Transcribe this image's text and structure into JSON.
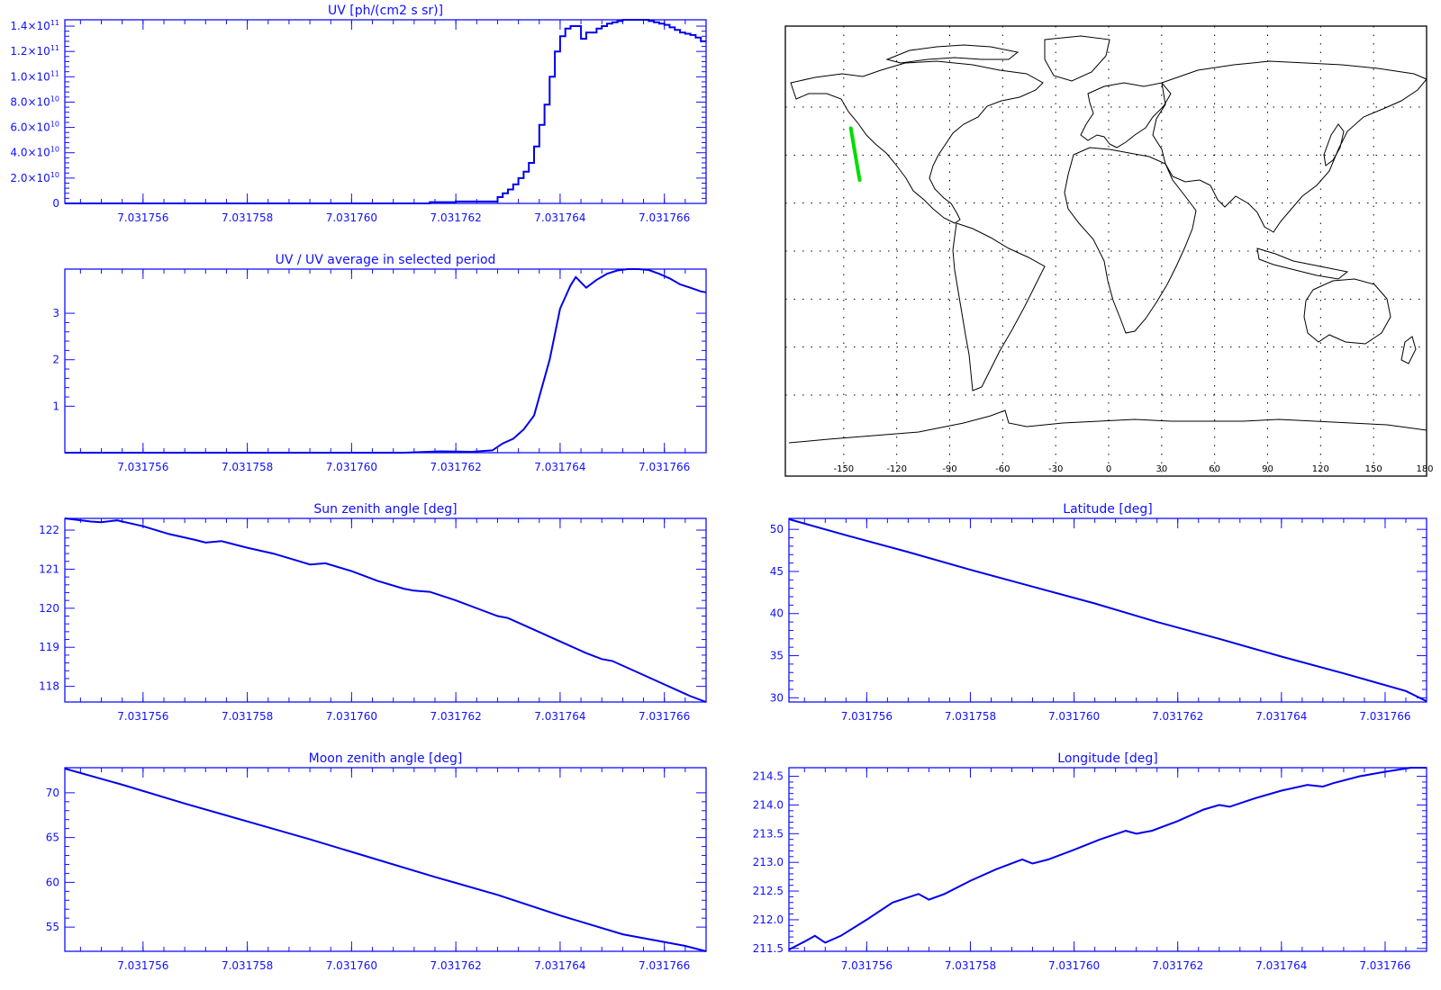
{
  "colors": {
    "axis": "#1010ff",
    "line": "#0000ee",
    "map_outline": "#000000",
    "track": "#00dd00",
    "grid": "#000000"
  },
  "x_ticks": [
    "7.031756",
    "7.031758",
    "7.031760",
    "7.031762",
    "7.031764",
    "7.031766"
  ],
  "chart_data": [
    {
      "type": "line",
      "step": true,
      "title": "UV [ph/(cm2 s sr)]",
      "xlim": [
        7.0317545,
        7.0317668
      ],
      "ylim": [
        0,
        145000000000.0
      ],
      "y_ticks": [
        {
          "v": 0,
          "label": "0"
        },
        {
          "v": 20000000000.0,
          "label": "2.0×10",
          "exp": "10"
        },
        {
          "v": 40000000000.0,
          "label": "4.0×10",
          "exp": "10"
        },
        {
          "v": 60000000000.0,
          "label": "6.0×10",
          "exp": "10"
        },
        {
          "v": 80000000000.0,
          "label": "8.0×10",
          "exp": "10"
        },
        {
          "v": 100000000000.0,
          "label": "1.0×10",
          "exp": "11"
        },
        {
          "v": 120000000000.0,
          "label": "1.2×10",
          "exp": "11"
        },
        {
          "v": 140000000000.0,
          "label": "1.4×10",
          "exp": "11"
        }
      ],
      "x": [
        7.0317545,
        7.031761,
        7.0317615,
        7.031762,
        7.0317626,
        7.0317628,
        7.0317629,
        7.031763,
        7.0317631,
        7.0317632,
        7.0317633,
        7.0317634,
        7.0317635,
        7.0317636,
        7.0317637,
        7.0317638,
        7.0317639,
        7.031764,
        7.0317641,
        7.0317642,
        7.0317643,
        7.0317644,
        7.0317645,
        7.0317647,
        7.0317648,
        7.0317649,
        7.031765,
        7.0317651,
        7.0317652,
        7.0317653,
        7.0317654,
        7.0317655,
        7.0317657,
        7.0317658,
        7.0317659,
        7.031766,
        7.0317661,
        7.0317662,
        7.0317663,
        7.0317664,
        7.0317665,
        7.0317666,
        7.0317667,
        7.0317668
      ],
      "y": [
        0,
        0,
        1000000000.0,
        1500000000.0,
        1500000000.0,
        5000000000.0,
        8000000000.0,
        11000000000.0,
        15000000000.0,
        20000000000.0,
        25000000000.0,
        32000000000.0,
        45000000000.0,
        62000000000.0,
        78000000000.0,
        100000000000.0,
        120000000000.0,
        132000000000.0,
        138000000000.0,
        140000000000.0,
        140000000000.0,
        130000000000.0,
        135000000000.0,
        138000000000.0,
        140000000000.0,
        142000000000.0,
        143000000000.0,
        144000000000.0,
        145000000000.0,
        145000000000.0,
        145000000000.0,
        145000000000.0,
        144000000000.0,
        143000000000.0,
        142000000000.0,
        141000000000.0,
        139000000000.0,
        137000000000.0,
        135000000000.0,
        134000000000.0,
        133000000000.0,
        131000000000.0,
        128000000000.0,
        128000000000.0
      ]
    },
    {
      "type": "line",
      "title": "UV / UV average in selected period",
      "xlim": [
        7.0317545,
        7.0317668
      ],
      "ylim": [
        0,
        3.95
      ],
      "y_ticks": [
        {
          "v": 1,
          "label": "1"
        },
        {
          "v": 2,
          "label": "2"
        },
        {
          "v": 3,
          "label": "3"
        }
      ],
      "x": [
        7.0317545,
        7.031761,
        7.0317617,
        7.0317623,
        7.0317627,
        7.0317629,
        7.0317631,
        7.0317633,
        7.0317635,
        7.0317638,
        7.031764,
        7.0317642,
        7.0317643,
        7.0317645,
        7.0317647,
        7.0317649,
        7.0317651,
        7.0317653,
        7.0317655,
        7.0317657,
        7.0317659,
        7.0317661,
        7.0317663,
        7.0317665,
        7.0317667,
        7.0317668
      ],
      "y": [
        0,
        0,
        0.03,
        0.02,
        0.05,
        0.2,
        0.3,
        0.5,
        0.8,
        2.0,
        3.1,
        3.6,
        3.78,
        3.55,
        3.72,
        3.85,
        3.92,
        3.95,
        3.95,
        3.93,
        3.85,
        3.75,
        3.62,
        3.55,
        3.47,
        3.45
      ]
    },
    {
      "type": "line",
      "title": "Sun zenith angle [deg]",
      "xlim": [
        7.0317545,
        7.0317668
      ],
      "ylim": [
        117.6,
        122.3
      ],
      "y_ticks": [
        {
          "v": 118,
          "label": "118"
        },
        {
          "v": 119,
          "label": "119"
        },
        {
          "v": 120,
          "label": "120"
        },
        {
          "v": 121,
          "label": "121"
        },
        {
          "v": 122,
          "label": "122"
        }
      ],
      "x": [
        7.0317545,
        7.031755,
        7.0317552,
        7.0317555,
        7.031756,
        7.0317565,
        7.031757,
        7.0317572,
        7.0317575,
        7.031758,
        7.0317585,
        7.031759,
        7.0317592,
        7.0317595,
        7.03176,
        7.0317605,
        7.031761,
        7.0317612,
        7.0317615,
        7.031762,
        7.0317625,
        7.0317628,
        7.031763,
        7.0317635,
        7.031764,
        7.0317645,
        7.0317648,
        7.031765,
        7.0317655,
        7.031766,
        7.0317665,
        7.0317668
      ],
      "y": [
        122.3,
        122.22,
        122.2,
        122.25,
        122.1,
        121.9,
        121.75,
        121.68,
        121.72,
        121.55,
        121.4,
        121.2,
        121.12,
        121.15,
        120.95,
        120.7,
        120.5,
        120.45,
        120.42,
        120.2,
        119.95,
        119.8,
        119.75,
        119.45,
        119.15,
        118.85,
        118.7,
        118.65,
        118.35,
        118.05,
        117.75,
        117.6
      ]
    },
    {
      "type": "line",
      "title": "Moon zenith angle [deg]",
      "xlim": [
        7.0317545,
        7.0317668
      ],
      "ylim": [
        52.3,
        72.8
      ],
      "y_ticks": [
        {
          "v": 55,
          "label": "55"
        },
        {
          "v": 60,
          "label": "60"
        },
        {
          "v": 65,
          "label": "65"
        },
        {
          "v": 70,
          "label": "70"
        }
      ],
      "x": [
        7.0317545,
        7.0317556,
        7.0317568,
        7.031758,
        7.0317592,
        7.0317604,
        7.0317616,
        7.0317628,
        7.031764,
        7.0317652,
        7.0317664,
        7.0317668
      ],
      "y": [
        72.7,
        70.9,
        68.8,
        66.8,
        64.8,
        62.7,
        60.6,
        58.6,
        56.3,
        54.2,
        52.9,
        52.3
      ]
    },
    {
      "type": "line",
      "title": "Latitude [deg]",
      "xlim": [
        7.0317545,
        7.0317668
      ],
      "ylim": [
        29.5,
        51.3
      ],
      "y_ticks": [
        {
          "v": 30,
          "label": "30"
        },
        {
          "v": 35,
          "label": "35"
        },
        {
          "v": 40,
          "label": "40"
        },
        {
          "v": 45,
          "label": "45"
        },
        {
          "v": 50,
          "label": "50"
        }
      ],
      "x": [
        7.0317545,
        7.0317556,
        7.0317568,
        7.031758,
        7.0317592,
        7.0317604,
        7.0317616,
        7.0317628,
        7.031764,
        7.0317652,
        7.0317664,
        7.0317668
      ],
      "y": [
        51.2,
        49.3,
        47.3,
        45.2,
        43.2,
        41.2,
        39.0,
        37.0,
        34.9,
        32.9,
        30.8,
        29.6
      ]
    },
    {
      "type": "line",
      "title": "Longitude [deg]",
      "xlim": [
        7.0317545,
        7.0317668
      ],
      "ylim": [
        211.45,
        214.65
      ],
      "y_ticks": [
        {
          "v": 211.5,
          "label": "211.5"
        },
        {
          "v": 212.0,
          "label": "212.0"
        },
        {
          "v": 212.5,
          "label": "212.5"
        },
        {
          "v": 213.0,
          "label": "213.0"
        },
        {
          "v": 213.5,
          "label": "213.5"
        },
        {
          "v": 214.0,
          "label": "214.0"
        },
        {
          "v": 214.5,
          "label": "214.5"
        }
      ],
      "x": [
        7.0317545,
        7.0317548,
        7.031755,
        7.0317552,
        7.0317555,
        7.031756,
        7.0317565,
        7.031757,
        7.0317572,
        7.0317575,
        7.031758,
        7.0317585,
        7.031759,
        7.0317592,
        7.0317595,
        7.03176,
        7.0317605,
        7.031761,
        7.0317612,
        7.0317615,
        7.031762,
        7.0317625,
        7.0317628,
        7.031763,
        7.0317635,
        7.031764,
        7.0317645,
        7.0317648,
        7.031765,
        7.0317655,
        7.031766,
        7.0317665,
        7.0317668
      ],
      "y": [
        211.48,
        211.62,
        211.72,
        211.6,
        211.72,
        212.0,
        212.3,
        212.45,
        212.35,
        212.45,
        212.68,
        212.88,
        213.05,
        212.98,
        213.05,
        213.22,
        213.4,
        213.55,
        213.5,
        213.55,
        213.72,
        213.92,
        214.0,
        213.97,
        214.12,
        214.25,
        214.35,
        214.32,
        214.38,
        214.5,
        214.58,
        214.65,
        214.65
      ]
    }
  ],
  "map": {
    "x_ticks": [
      "-150",
      "-120",
      "-90",
      "-60",
      "-30",
      "0",
      "30",
      "60",
      "90",
      "120",
      "150",
      "180"
    ],
    "track": {
      "lon": [
        -146,
        -141
      ],
      "lat": [
        51.2,
        29.6
      ]
    }
  }
}
